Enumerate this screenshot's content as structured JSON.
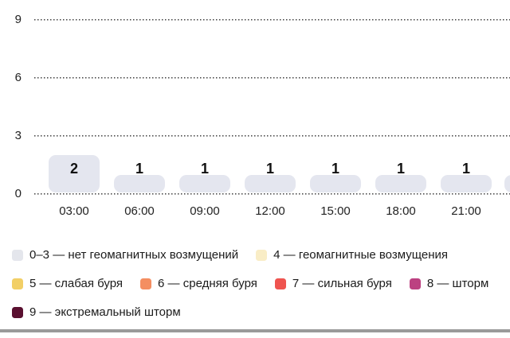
{
  "chart_data": {
    "type": "bar",
    "title": "",
    "xlabel": "",
    "ylabel": "",
    "x": [
      "03:00",
      "06:00",
      "09:00",
      "12:00",
      "15:00",
      "18:00",
      "21:00"
    ],
    "values": [
      2,
      1,
      1,
      1,
      1,
      1,
      1
    ],
    "partial_next_bar_value": 1,
    "yticks": [
      0,
      3,
      6,
      9
    ],
    "ylim": [
      0,
      9
    ],
    "grid": "horizontal-dotted",
    "legend_position": "bottom",
    "bar_color": "#e4e6ef"
  },
  "legend": {
    "rows": [
      [
        {
          "label": "0–3 — нет геомагнитных возмущений",
          "color": "#e4e6ec"
        },
        {
          "label": "4 — геомагнитные возмущения",
          "color": "#f9edc6"
        }
      ],
      [
        {
          "label": "5 — слабая буря",
          "color": "#f2cf66"
        },
        {
          "label": "6 — средняя буря",
          "color": "#f48e61"
        },
        {
          "label": "7 — сильная буря",
          "color": "#ef544f"
        },
        {
          "label": "8 — шторм",
          "color": "#bc4181"
        }
      ],
      [
        {
          "label": "9 — экстремальный шторм",
          "color": "#5a1030"
        }
      ]
    ]
  },
  "colors": {
    "background": "#ffffff",
    "grid_dots": "#4a4a4a",
    "axis_text": "#222222",
    "value_text": "#111111",
    "bar_fill": "#e4e6ef",
    "bottom_divider": "#9a9a9a"
  }
}
